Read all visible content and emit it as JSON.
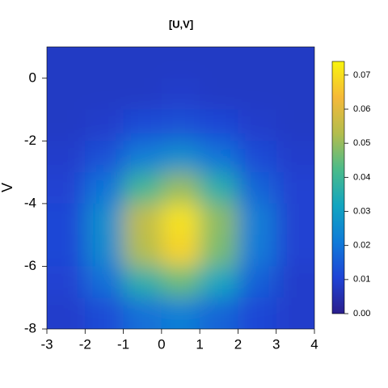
{
  "chart_data": {
    "type": "heatmap",
    "title": "[U,V]",
    "ylabel": "V",
    "x": [
      -2.5,
      -1.5,
      -0.5,
      0.5,
      1.5,
      2.5,
      3.5
    ],
    "y": [
      0.5,
      -0.5,
      -1.5,
      -2.5,
      -3.5,
      -4.5,
      -5.5,
      -6.5,
      -7.5
    ],
    "z": [
      [
        0.008,
        0.008,
        0.008,
        0.008,
        0.008,
        0.008,
        0.008
      ],
      [
        0.008,
        0.008,
        0.008,
        0.009,
        0.008,
        0.008,
        0.008
      ],
      [
        0.008,
        0.009,
        0.012,
        0.013,
        0.011,
        0.009,
        0.008
      ],
      [
        0.009,
        0.013,
        0.022,
        0.026,
        0.02,
        0.012,
        0.009
      ],
      [
        0.01,
        0.02,
        0.04,
        0.05,
        0.036,
        0.017,
        0.01
      ],
      [
        0.011,
        0.026,
        0.055,
        0.071,
        0.049,
        0.022,
        0.01
      ],
      [
        0.011,
        0.025,
        0.053,
        0.068,
        0.047,
        0.021,
        0.01
      ],
      [
        0.01,
        0.019,
        0.036,
        0.045,
        0.032,
        0.016,
        0.009
      ],
      [
        0.009,
        0.012,
        0.019,
        0.022,
        0.017,
        0.011,
        0.009
      ]
    ],
    "xlim": [
      -3,
      4
    ],
    "xticks": [
      -3,
      -2,
      -1,
      0,
      1,
      2,
      3,
      4
    ],
    "ylim": [
      -8,
      1
    ],
    "yticks": [
      -8,
      -6,
      -4,
      -2,
      0
    ],
    "zlim": [
      0,
      0.074
    ],
    "zticks": [
      {
        "value": 0,
        "label": "0.00"
      },
      {
        "value": 0.01,
        "label": "0.01"
      },
      {
        "value": 0.02,
        "label": "0.02"
      },
      {
        "value": 0.03,
        "label": "0.03"
      },
      {
        "value": 0.04,
        "label": "0.04"
      },
      {
        "value": 0.05,
        "label": "0.05"
      },
      {
        "value": 0.06,
        "label": "0.06"
      },
      {
        "value": 0.07,
        "label": "0.07"
      }
    ],
    "colormap": [
      "#2a1e8c",
      "#1f44d6",
      "#0f7bd8",
      "#12a5c0",
      "#4bbb8a",
      "#b3bd4d",
      "#f5b93a",
      "#f9f40e"
    ]
  }
}
